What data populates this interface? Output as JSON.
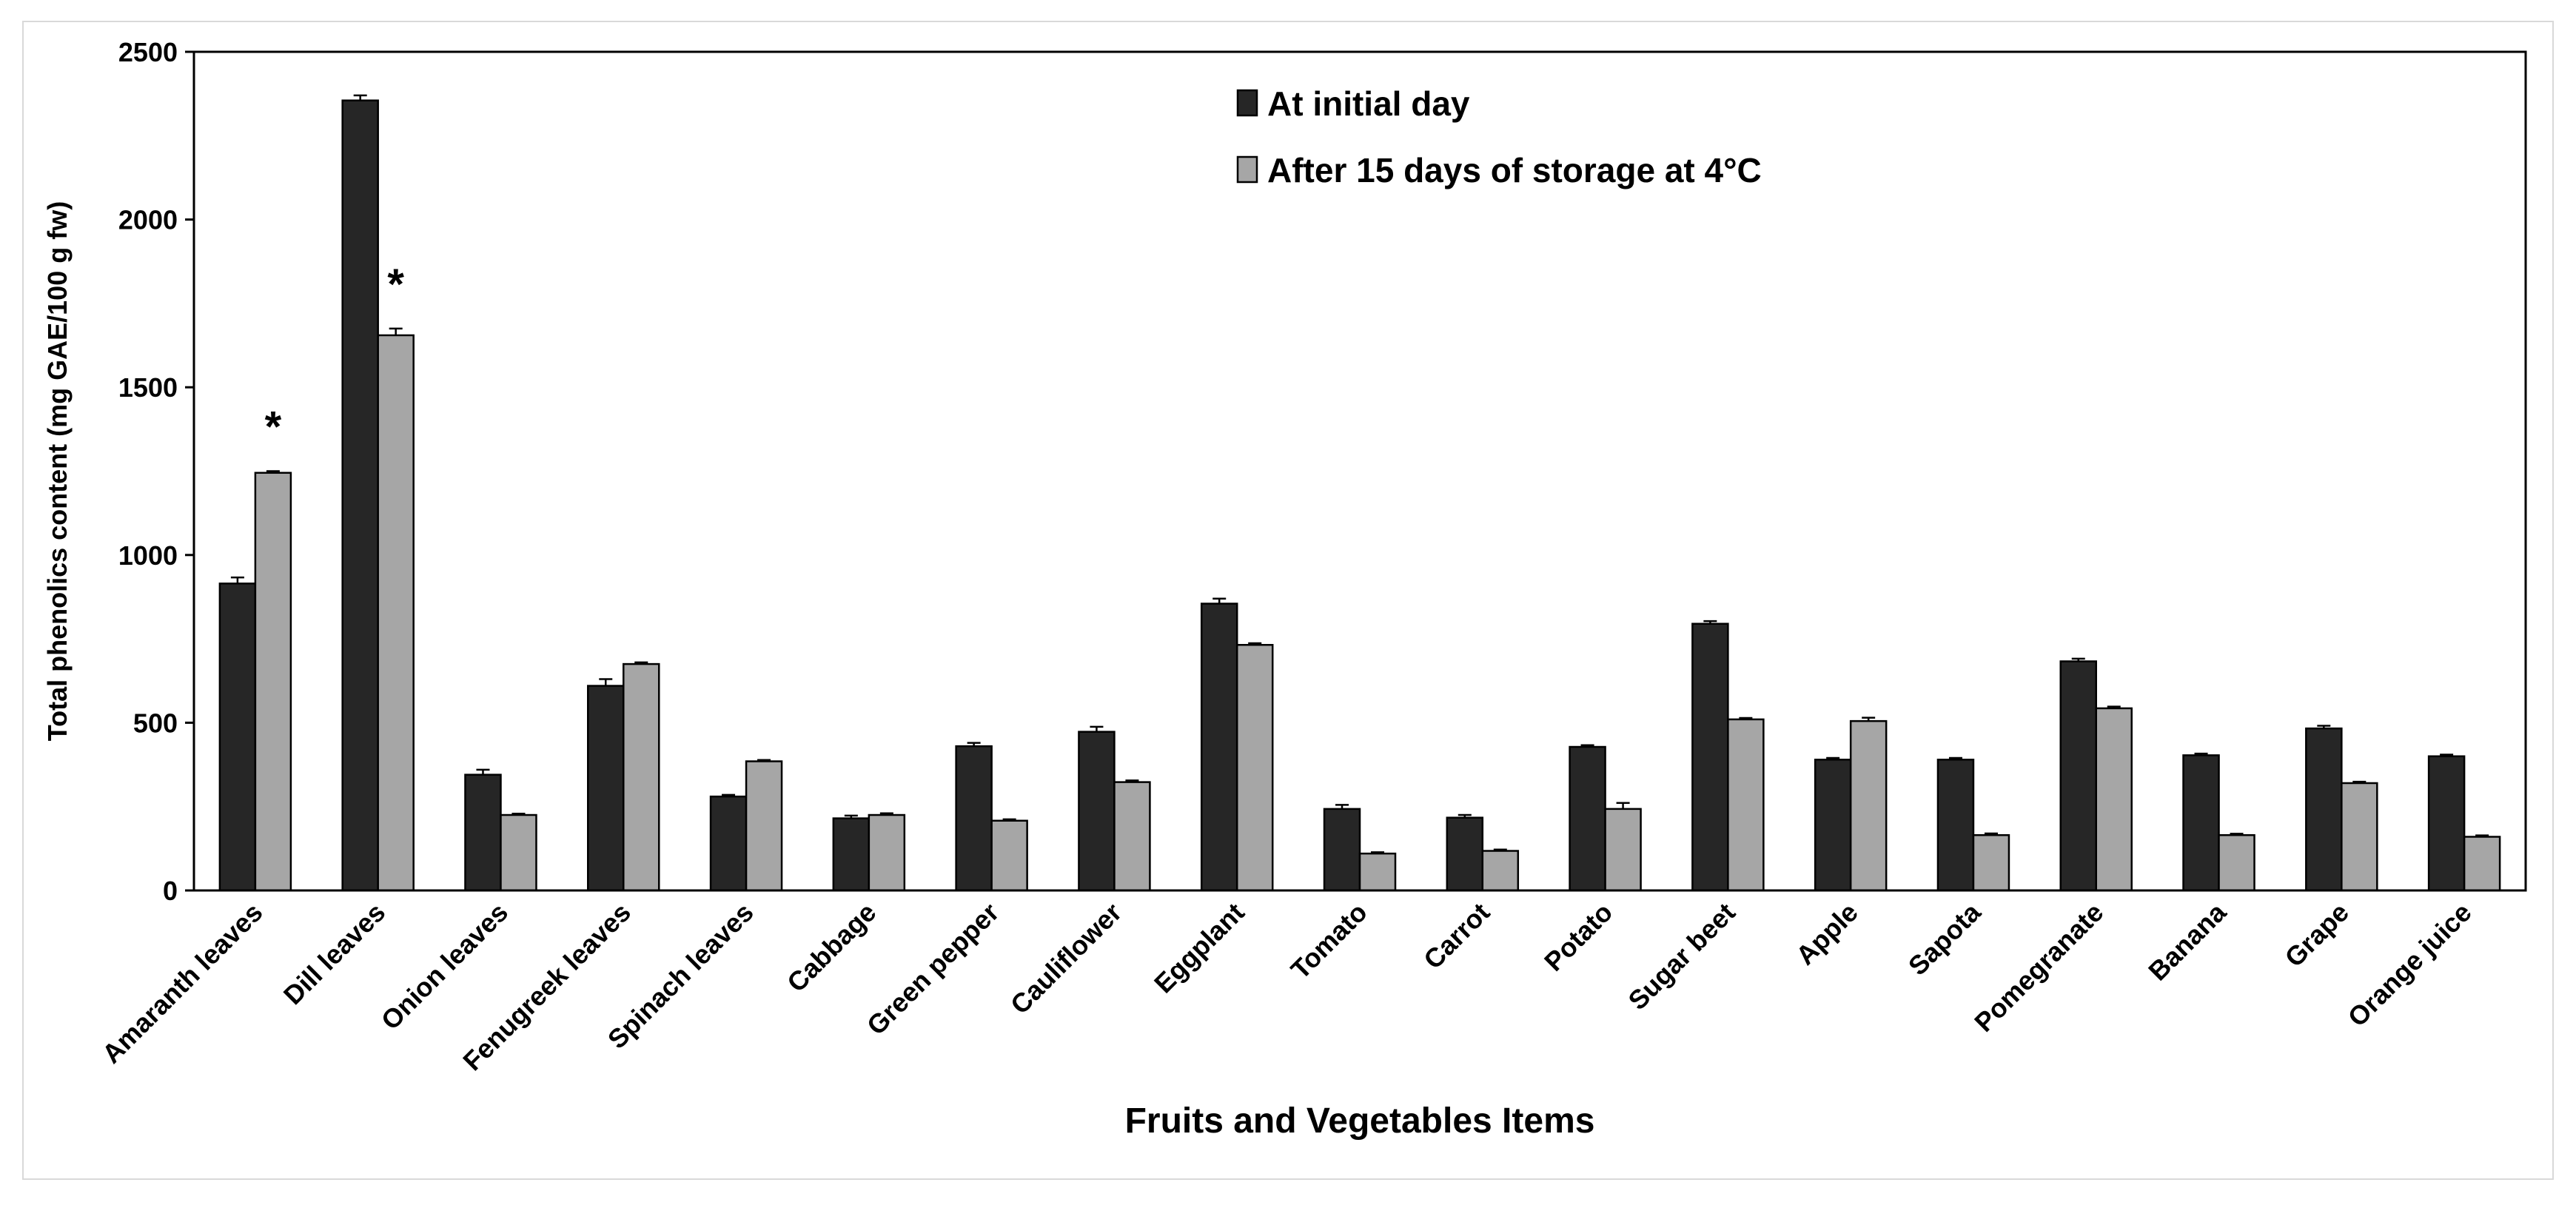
{
  "chart_data": {
    "type": "bar",
    "title": "",
    "xlabel": "Fruits and Vegetables Items",
    "ylabel": "Total phenolics content (mg GAE/100 g fw)",
    "ylim": [
      0,
      2500
    ],
    "yticks": [
      "0",
      "500",
      "1000",
      "1500",
      "2000",
      "2500"
    ],
    "legend_position": "top-center",
    "grid": false,
    "categories": [
      "Amaranth leaves",
      "Dill leaves",
      "Onion leaves",
      "Fenugreek leaves",
      "Spinach leaves",
      "Cabbage",
      "Green pepper",
      "Cauliflower",
      "Eggplant",
      "Tomato",
      "Carrot",
      "Potato",
      "Sugar beet",
      "Apple",
      "Sapota",
      "Pomegranate",
      "Banana",
      "Grape",
      "Orange juice"
    ],
    "series": [
      {
        "name": "At initial day",
        "color": "#262626",
        "values": [
          915,
          2355,
          345,
          610,
          280,
          215,
          430,
          473,
          855,
          243,
          217,
          428,
          795,
          390,
          390,
          683,
          403,
          483,
          400
        ],
        "errors": [
          18,
          15,
          15,
          20,
          5,
          8,
          10,
          15,
          15,
          12,
          8,
          5,
          8,
          5,
          5,
          8,
          5,
          8,
          5
        ]
      },
      {
        "name": "After 15 days of storage at 4°C",
        "color": "#a6a6a6",
        "values": [
          1245,
          1655,
          225,
          675,
          385,
          225,
          208,
          323,
          732,
          110,
          118,
          243,
          510,
          505,
          165,
          543,
          165,
          320,
          160
        ],
        "errors": [
          5,
          20,
          4,
          5,
          4,
          5,
          4,
          5,
          5,
          4,
          4,
          18,
          4,
          10,
          5,
          5,
          4,
          4,
          4
        ]
      }
    ],
    "annotations": [
      {
        "category": "Amaranth leaves",
        "series": 1,
        "text": "*"
      },
      {
        "category": "Dill leaves",
        "series": 1,
        "text": "*"
      }
    ]
  }
}
